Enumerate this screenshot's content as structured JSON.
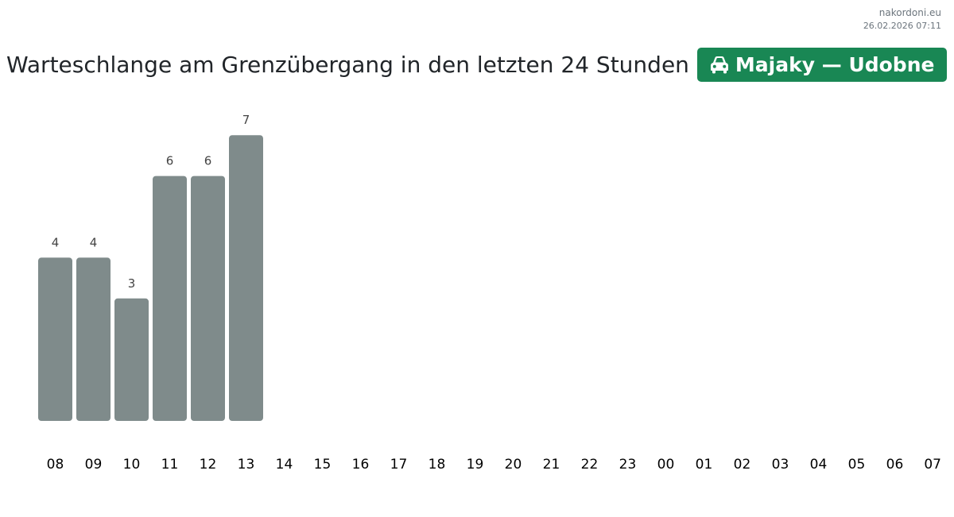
{
  "header": {
    "site": "nakordoni.eu",
    "timestamp": "26.02.2026 07:11",
    "title": "Warteschlange am Grenzübergang in den letzten 24 Stunden",
    "badge_label": "Majaky — Udobne",
    "badge_icon": "car-icon",
    "badge_color": "#198754"
  },
  "chart_data": {
    "type": "bar",
    "title": "",
    "xlabel": "",
    "ylabel": "",
    "categories": [
      "08",
      "09",
      "10",
      "11",
      "12",
      "13",
      "14",
      "15",
      "16",
      "17",
      "18",
      "19",
      "20",
      "21",
      "22",
      "23",
      "00",
      "01",
      "02",
      "03",
      "04",
      "05",
      "06",
      "07"
    ],
    "values": [
      4,
      4,
      3,
      6,
      6,
      7,
      null,
      null,
      null,
      null,
      null,
      null,
      null,
      null,
      null,
      null,
      null,
      null,
      null,
      null,
      null,
      null,
      null,
      null
    ],
    "ylim": [
      0,
      8
    ],
    "bar_color": "#7f8b8b",
    "data_labels": true,
    "grid": false,
    "legend": "none"
  }
}
